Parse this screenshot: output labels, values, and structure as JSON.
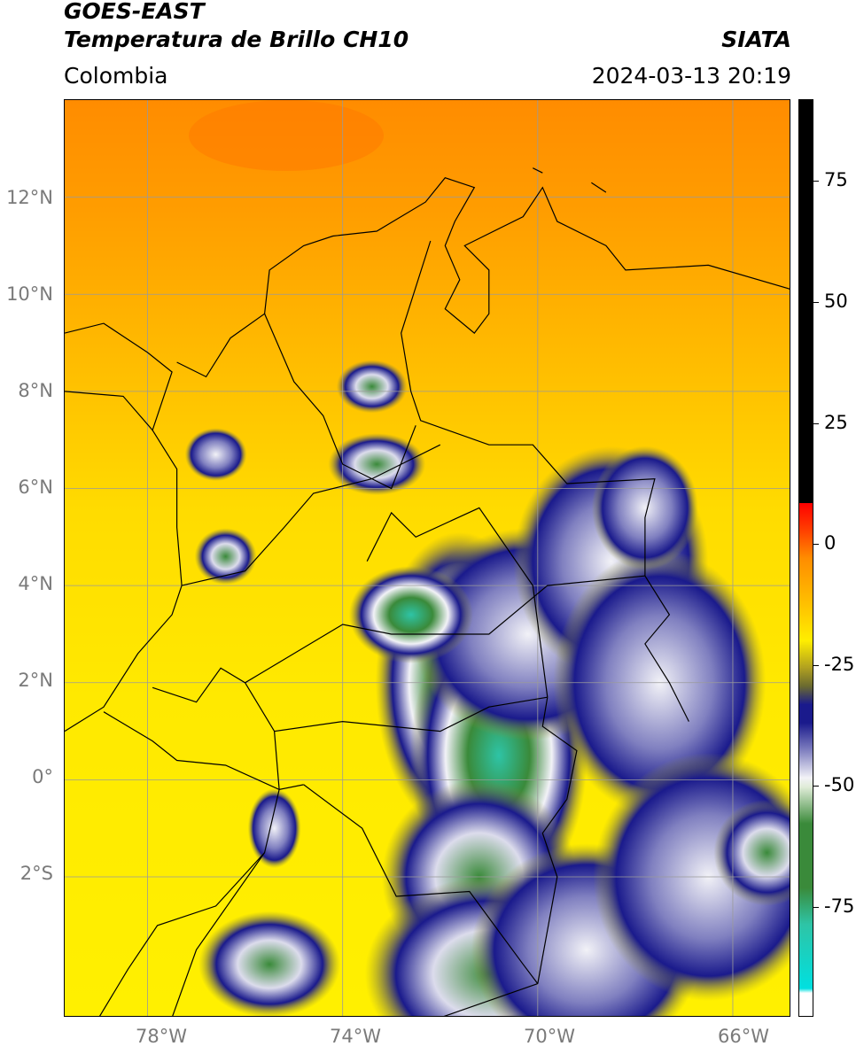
{
  "header": {
    "satellite": "GOES-EAST",
    "product": "Temperatura de Brillo CH10",
    "region": "Colombia",
    "agency": "SIATA",
    "timestamp": "2024-03-13 20:19"
  },
  "map": {
    "lat_ticks": [
      "12°N",
      "10°N",
      "8°N",
      "6°N",
      "4°N",
      "2°N",
      "0°",
      "2°S"
    ],
    "lon_ticks": [
      "78°W",
      "74°W",
      "70°W",
      "66°W"
    ],
    "extent": {
      "lon_min": -79.7,
      "lon_max": -64.8,
      "lat_min": -4.9,
      "lat_max": 14.0
    },
    "colors": {
      "warm_orange": "#ff8c00",
      "yellow": "#ffeb00",
      "navy": "#1a1a8c",
      "white_cloud": "#f2f2f7",
      "green": "#3a8a3a",
      "teal": "#2ec4a6",
      "border_line": "#000000",
      "grid_line": "#9a9a9a"
    }
  },
  "colorbar": {
    "ticks": [
      "75",
      "50",
      "25",
      "0",
      "-25",
      "-50",
      "-75"
    ],
    "range": [
      -95,
      90
    ],
    "unit": ""
  }
}
